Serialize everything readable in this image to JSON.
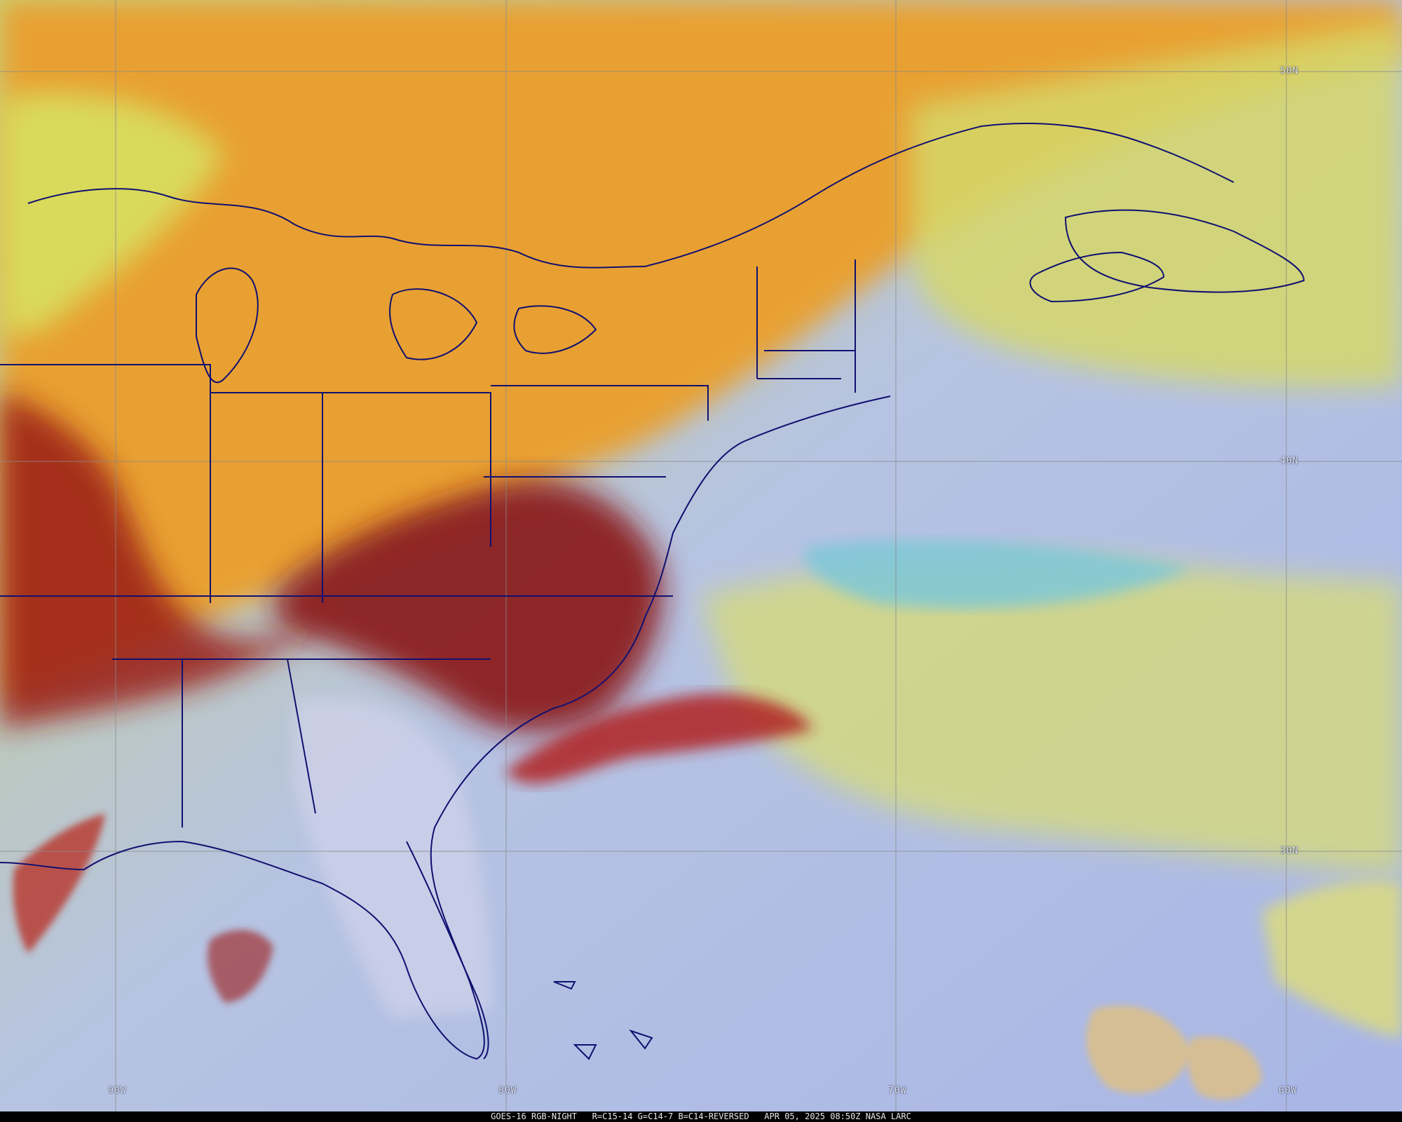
{
  "map": {
    "latitude_labels": [
      "50N",
      "40N",
      "30N"
    ],
    "longitude_labels": [
      "90W",
      "80W",
      "70W",
      "60W"
    ],
    "colors": {
      "warm_orange": "#e8a030",
      "deep_red": "#8a1818",
      "yellow_green": "#d8e060",
      "pale_blue": "#a8b8e8",
      "cyan": "#7ec8d8",
      "coastline": "#101070",
      "graticule": "#8a8a8a"
    }
  },
  "footer": {
    "caption": "GOES-16 RGB-NIGHT   R=C15-14 G=C14-7 B=C14-REVERSED   APR 05, 2025 08:50Z NASA LARC"
  }
}
